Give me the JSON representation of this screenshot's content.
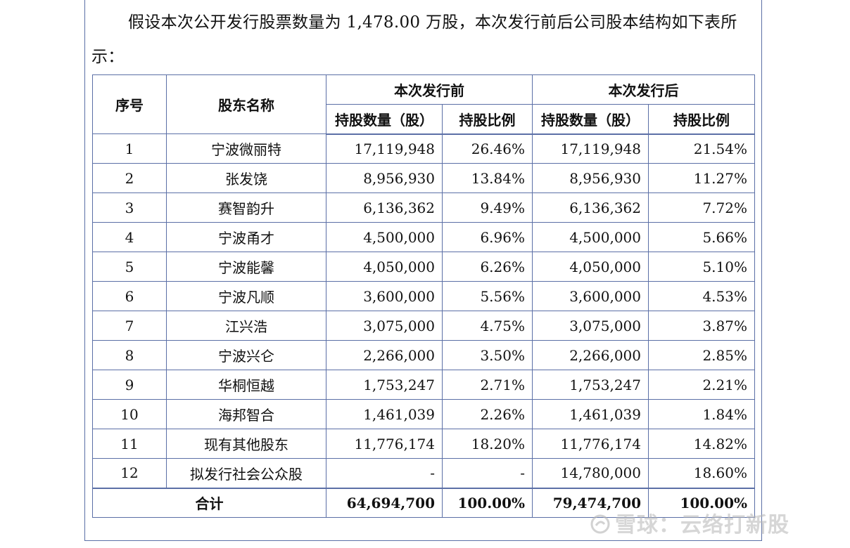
{
  "intro": {
    "text": "假设本次公开发行股票数量为 1,478.00 万股，本次发行前后公司股本结构如下表所示："
  },
  "table": {
    "headers": {
      "seq": "序号",
      "name": "股东名称",
      "before": "本次发行前",
      "after": "本次发行后",
      "before_shares": "持股数量（股）",
      "before_ratio": "持股比例",
      "after_shares": "持股数量（股）",
      "after_ratio": "持股比例"
    },
    "rows": [
      {
        "seq": "1",
        "name": "宁波微丽特",
        "before_shares": "17,119,948",
        "before_ratio": "26.46%",
        "after_shares": "17,119,948",
        "after_ratio": "21.54%"
      },
      {
        "seq": "2",
        "name": "张发饶",
        "before_shares": "8,956,930",
        "before_ratio": "13.84%",
        "after_shares": "8,956,930",
        "after_ratio": "11.27%"
      },
      {
        "seq": "3",
        "name": "赛智韵升",
        "before_shares": "6,136,362",
        "before_ratio": "9.49%",
        "after_shares": "6,136,362",
        "after_ratio": "7.72%"
      },
      {
        "seq": "4",
        "name": "宁波甬才",
        "before_shares": "4,500,000",
        "before_ratio": "6.96%",
        "after_shares": "4,500,000",
        "after_ratio": "5.66%"
      },
      {
        "seq": "5",
        "name": "宁波能馨",
        "before_shares": "4,050,000",
        "before_ratio": "6.26%",
        "after_shares": "4,050,000",
        "after_ratio": "5.10%"
      },
      {
        "seq": "6",
        "name": "宁波凡顺",
        "before_shares": "3,600,000",
        "before_ratio": "5.56%",
        "after_shares": "3,600,000",
        "after_ratio": "4.53%"
      },
      {
        "seq": "7",
        "name": "江兴浩",
        "before_shares": "3,075,000",
        "before_ratio": "4.75%",
        "after_shares": "3,075,000",
        "after_ratio": "3.87%"
      },
      {
        "seq": "8",
        "name": "宁波兴仑",
        "before_shares": "2,266,000",
        "before_ratio": "3.50%",
        "after_shares": "2,266,000",
        "after_ratio": "2.85%"
      },
      {
        "seq": "9",
        "name": "华桐恒越",
        "before_shares": "1,753,247",
        "before_ratio": "2.71%",
        "after_shares": "1,753,247",
        "after_ratio": "2.21%"
      },
      {
        "seq": "10",
        "name": "海邦智合",
        "before_shares": "1,461,039",
        "before_ratio": "2.26%",
        "after_shares": "1,461,039",
        "after_ratio": "1.84%"
      },
      {
        "seq": "11",
        "name": "现有其他股东",
        "before_shares": "11,776,174",
        "before_ratio": "18.20%",
        "after_shares": "11,776,174",
        "after_ratio": "14.82%"
      },
      {
        "seq": "12",
        "name": "拟发行社会公众股",
        "before_shares": "-",
        "before_ratio": "-",
        "after_shares": "14,780,000",
        "after_ratio": "18.60%"
      }
    ],
    "total": {
      "label": "合计",
      "before_shares": "64,694,700",
      "before_ratio": "100.00%",
      "after_shares": "79,474,700",
      "after_ratio": "100.00%"
    }
  },
  "watermark": {
    "text": "雪球：云络打新股",
    "icon": "snowball-logo-icon"
  }
}
